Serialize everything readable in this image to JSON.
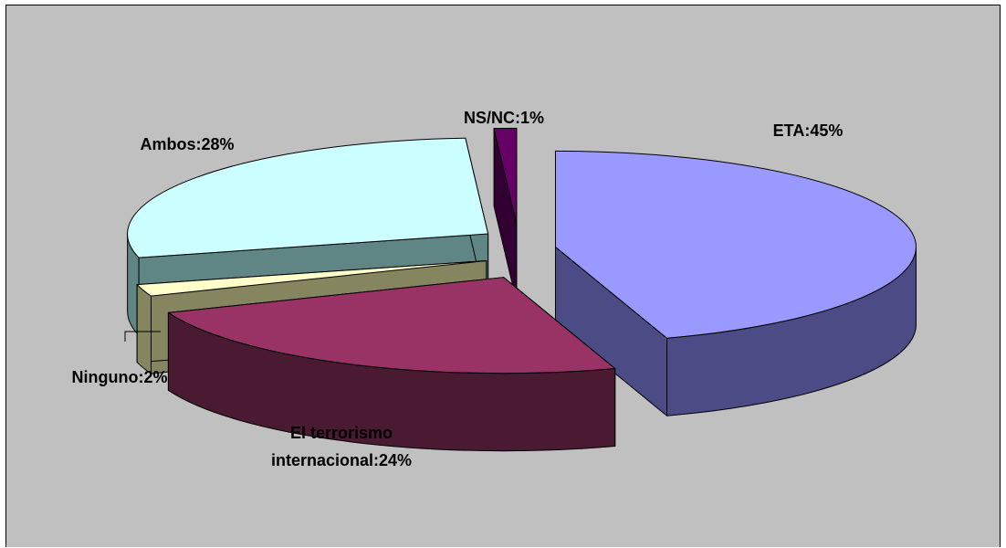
{
  "chart_data": {
    "type": "pie",
    "style": "3d-exploded",
    "title": "",
    "colors_top": [
      "#9999ff",
      "#993366",
      "#ffffcc",
      "#ccffff",
      "#660066"
    ],
    "colors_side": [
      "#4b4b85",
      "#4a1a33",
      "#858560",
      "#5f8585",
      "#330033"
    ],
    "slices": [
      {
        "name": "ETA",
        "label": "ETA:45%",
        "value": 45
      },
      {
        "name": "El terrorismo internacional",
        "label_lines": [
          "El terrorismo",
          "internacional:24%"
        ],
        "value": 24
      },
      {
        "name": "Ninguno",
        "label": "Ninguno:2%",
        "value": 2
      },
      {
        "name": "Ambos",
        "label": "Ambos:28%",
        "value": 28
      },
      {
        "name": "NS/NC",
        "label": "NS/NC:1%",
        "value": 1
      }
    ]
  }
}
